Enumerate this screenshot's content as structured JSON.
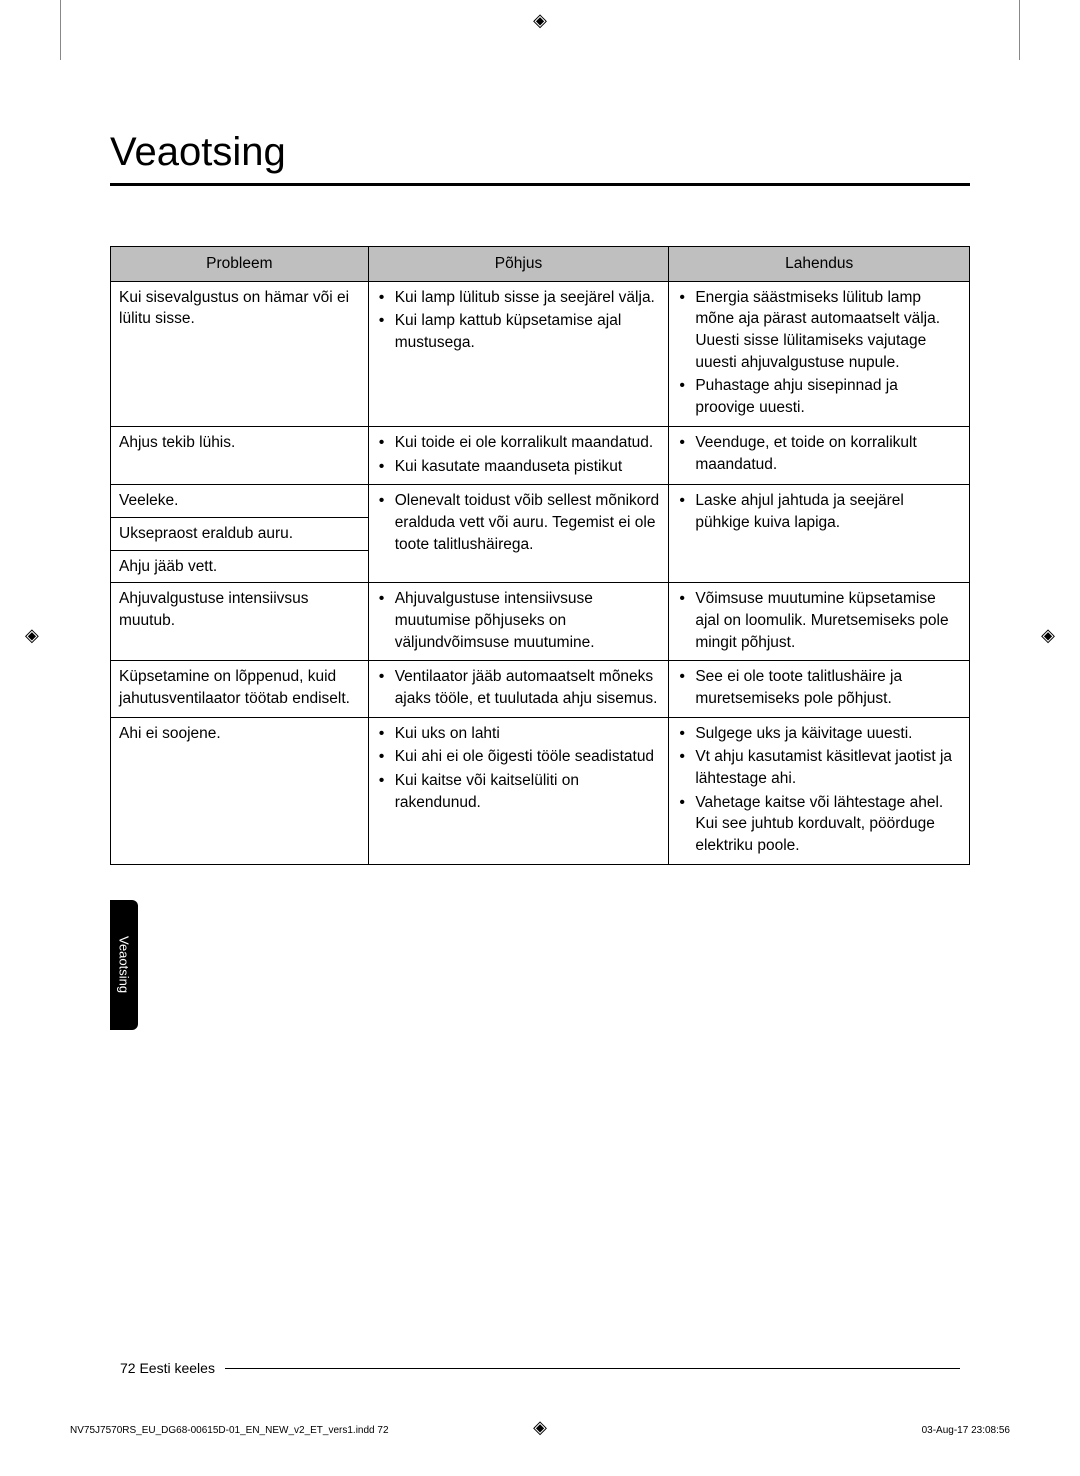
{
  "title": "Veaotsing",
  "side_tab": "Veaotsing",
  "page_footer": "72 Eesti keeles",
  "print_file": "NV75J7570RS_EU_DG68-00615D-01_EN_NEW_v2_ET_vers1.indd   72",
  "print_date": "03-Aug-17   23:08:56",
  "reg_glyph": "◈",
  "table": {
    "headers": [
      "Probleem",
      "Põhjus",
      "Lahendus"
    ],
    "rows": [
      {
        "problem": "Kui sisevalgustus on hämar või ei lülitu sisse.",
        "cause": [
          "Kui lamp lülitub sisse ja seejärel välja.",
          "Kui lamp kattub küpsetamise ajal mustusega."
        ],
        "solution": [
          "Energia säästmiseks lülitub lamp mõne aja pärast automaatselt välja. Uuesti sisse lülitamiseks vajutage uuesti ahjuvalgustuse nupule.",
          "Puhastage ahju sisepinnad ja proovige uuesti."
        ]
      },
      {
        "problem": "Ahjus tekib lühis.",
        "cause": [
          "Kui toide ei ole korralikult maandatud.",
          "Kui kasutate maanduseta pistikut"
        ],
        "solution": [
          "Veenduge, et toide on korralikult maandatud."
        ]
      },
      {
        "problems": [
          "Veeleke.",
          "Uksepraost eraldub auru.",
          "Ahju jääb vett."
        ],
        "cause": [
          "Olenevalt toidust võib sellest mõnikord eralduda vett või auru. Tegemist ei ole toote talitlushäirega."
        ],
        "solution": [
          "Laske ahjul jahtuda ja seejärel pühkige kuiva lapiga."
        ]
      },
      {
        "problem": "Ahjuvalgustuse intensiivsus muutub.",
        "cause": [
          "Ahjuvalgustuse intensiivsuse muutumise põhjuseks on väljundvõimsuse muutumine."
        ],
        "solution": [
          "Võimsuse muutumine küpsetamise ajal on loomulik. Muretsemiseks pole mingit põhjust."
        ]
      },
      {
        "problem": "Küpsetamine on lõppenud, kuid jahutusventilaator töötab endiselt.",
        "cause": [
          "Ventilaator jääb automaatselt mõneks ajaks tööle, et tuulutada ahju sisemus."
        ],
        "solution": [
          "See ei ole toote talitlushäire ja muretsemiseks pole põhjust."
        ]
      },
      {
        "problem": "Ahi ei soojene.",
        "cause": [
          "Kui uks on lahti",
          "Kui ahi ei ole õigesti tööle seadistatud",
          "Kui kaitse või kaitselüliti on rakendunud."
        ],
        "solution": [
          "Sulgege uks ja käivitage uuesti.",
          "Vt ahju kasutamist käsitlevat jaotist ja lähtestage ahi.",
          "Vahetage kaitse või lähtestage ahel. Kui see juhtub korduvalt, pöörduge elektriku poole."
        ]
      }
    ]
  }
}
